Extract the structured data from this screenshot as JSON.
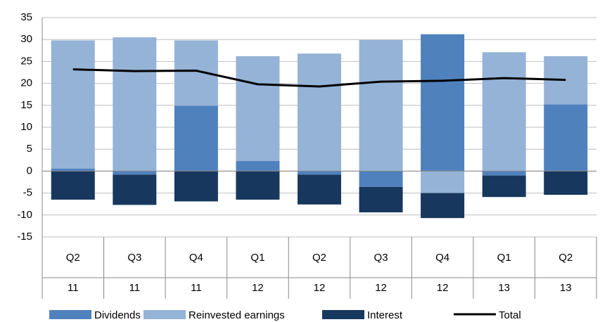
{
  "chart_data": {
    "type": "stacked-bar-line",
    "categories": [
      "Q2",
      "Q3",
      "Q4",
      "Q1",
      "Q2",
      "Q3",
      "Q4",
      "Q1",
      "Q2"
    ],
    "category_groups": [
      "11",
      "11",
      "11",
      "12",
      "12",
      "12",
      "12",
      "13",
      "13"
    ],
    "series": [
      {
        "name": "Dividends",
        "color": "#4f81bd",
        "kind": "bar",
        "values": [
          0.6,
          -0.8,
          14.9,
          2.3,
          -0.8,
          -3.6,
          31.2,
          -1.0,
          15.2
        ]
      },
      {
        "name": "Reinvested earnings",
        "color": "#95b3d7",
        "kind": "bar",
        "values": [
          29.2,
          30.5,
          14.9,
          23.9,
          26.8,
          29.9,
          -5.0,
          27.1,
          11.0
        ]
      },
      {
        "name": "Interest",
        "color": "#17375e",
        "kind": "bar",
        "values": [
          -6.5,
          -6.9,
          -6.9,
          -6.5,
          -6.8,
          -5.8,
          -5.7,
          -4.9,
          -5.4
        ]
      },
      {
        "name": "Total",
        "color": "#000000",
        "kind": "line",
        "values": [
          23.2,
          22.8,
          22.9,
          19.8,
          19.3,
          20.4,
          20.6,
          21.2,
          20.8
        ]
      }
    ],
    "ylim": [
      -15,
      35
    ],
    "yticks": [
      -15,
      -10,
      -5,
      0,
      5,
      10,
      15,
      20,
      25,
      30,
      35
    ],
    "grid": true
  }
}
